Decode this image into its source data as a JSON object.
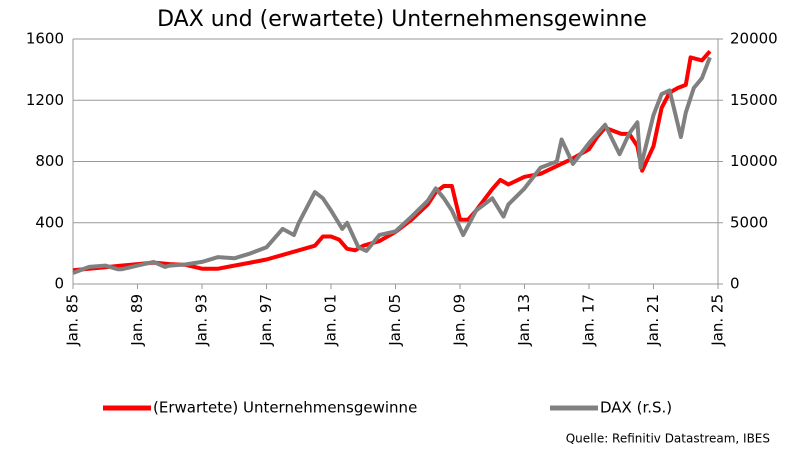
{
  "chart_data": {
    "type": "line",
    "title": "DAX und (erwartete) Unternehmensgewinne",
    "source": "Quelle: Refinitiv Datastream, IBES",
    "xlim": [
      1985,
      2025
    ],
    "xticks": [
      {
        "value": 1985,
        "label": "Jan. 85"
      },
      {
        "value": 1989,
        "label": "Jan. 89"
      },
      {
        "value": 1993,
        "label": "Jan. 93"
      },
      {
        "value": 1997,
        "label": "Jan. 97"
      },
      {
        "value": 2001,
        "label": "Jan. 01"
      },
      {
        "value": 2005,
        "label": "Jan. 05"
      },
      {
        "value": 2009,
        "label": "Jan. 09"
      },
      {
        "value": 2013,
        "label": "Jan. 13"
      },
      {
        "value": 2017,
        "label": "Jan. 17"
      },
      {
        "value": 2021,
        "label": "Jan. 21"
      },
      {
        "value": 2025,
        "label": "Jan. 25"
      }
    ],
    "ylim": [
      0,
      1600
    ],
    "yticks": [
      0,
      400,
      800,
      1200,
      1600
    ],
    "y2lim": [
      0,
      20000
    ],
    "y2ticks": [
      0,
      5000,
      10000,
      15000,
      20000
    ],
    "grid": true,
    "legend": "bottom",
    "series": [
      {
        "name": "(Erwartete) Unternehmensgewinne",
        "color": "#ff0000",
        "axis": "y",
        "x": [
          1985,
          1986,
          1987,
          1988,
          1989,
          1990,
          1991,
          1992,
          1993,
          1994,
          1995,
          1996,
          1997,
          1998,
          1999,
          2000,
          2000.5,
          2001,
          2001.5,
          2002,
          2002.5,
          2003,
          2004,
          2005,
          2006,
          2007,
          2007.5,
          2008,
          2008.5,
          2009,
          2009.5,
          2010,
          2011,
          2011.5,
          2012,
          2013,
          2014,
          2015,
          2016,
          2017,
          2017.5,
          2018,
          2019,
          2019.5,
          2020,
          2020.3,
          2021,
          2021.5,
          2022,
          2022.5,
          2023,
          2023.3,
          2024,
          2024.5
        ],
        "values": [
          90,
          100,
          110,
          120,
          130,
          140,
          130,
          125,
          100,
          100,
          120,
          140,
          160,
          190,
          220,
          250,
          310,
          310,
          290,
          230,
          220,
          250,
          280,
          340,
          420,
          520,
          600,
          640,
          640,
          420,
          420,
          480,
          620,
          680,
          650,
          700,
          720,
          770,
          820,
          880,
          960,
          1020,
          980,
          980,
          900,
          740,
          900,
          1150,
          1250,
          1280,
          1300,
          1480,
          1460,
          1520
        ]
      },
      {
        "name": "DAX (r.S.)",
        "color": "#808080",
        "axis": "y2",
        "x": [
          1985,
          1986,
          1987,
          1987.8,
          1988,
          1989,
          1990,
          1990.7,
          1991,
          1992,
          1993,
          1994,
          1995,
          1996,
          1997,
          1998,
          1998.7,
          1999,
          2000,
          2000.5,
          2001,
          2001.7,
          2002,
          2002.7,
          2003.2,
          2004,
          2005,
          2006,
          2007,
          2007.5,
          2008,
          2008.5,
          2009.2,
          2010,
          2011,
          2011.7,
          2012,
          2013,
          2014,
          2015,
          2015.3,
          2016,
          2017,
          2018,
          2018.9,
          2019.5,
          2020,
          2020.2,
          2021,
          2021.5,
          2022,
          2022.7,
          2023,
          2023.5,
          2024,
          2024.5
        ],
        "values": [
          900,
          1400,
          1500,
          1200,
          1200,
          1500,
          1800,
          1400,
          1500,
          1600,
          1800,
          2200,
          2100,
          2500,
          3000,
          4500,
          4000,
          5000,
          7500,
          7000,
          6000,
          4500,
          5000,
          3000,
          2700,
          4000,
          4300,
          5500,
          6800,
          7800,
          7000,
          6000,
          4000,
          6000,
          7000,
          5500,
          6500,
          7800,
          9500,
          10000,
          11800,
          9800,
          11500,
          13000,
          10600,
          12300,
          13200,
          9500,
          13800,
          15500,
          15800,
          12000,
          14000,
          16000,
          16800,
          18500
        ]
      }
    ]
  }
}
